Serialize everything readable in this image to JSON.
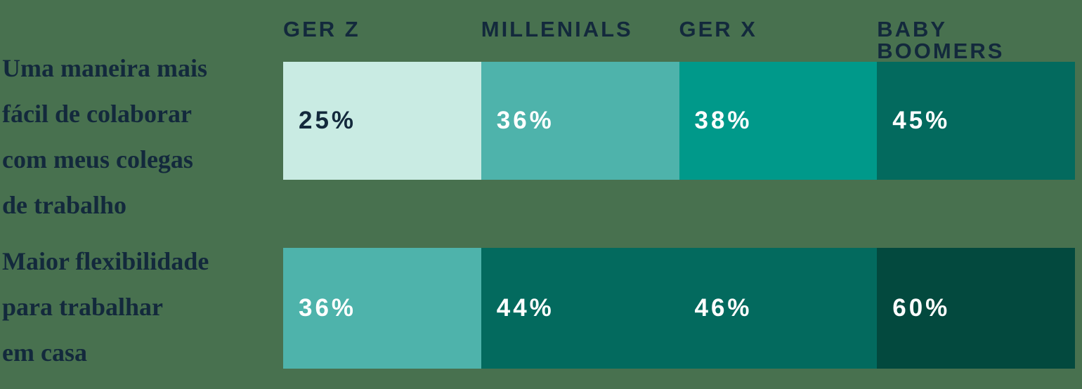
{
  "chart_data": {
    "type": "bar",
    "subtype": "horizontal-grouped-percentage-strips",
    "unit": "%",
    "categories": [
      "GER Z",
      "MILLENIALS",
      "GER X",
      "BABY BOOMERS"
    ],
    "legend": "column headers above bars, no separate legend",
    "grid": false,
    "rows": [
      {
        "label": "Uma maneira mais fácil de colaborar com meus colegas de trabalho",
        "label_lines": [
          "Uma maneira mais",
          "fácil de colaborar",
          "com meus colegas",
          "de trabalho"
        ],
        "values": [
          25,
          36,
          38,
          45
        ],
        "segments": [
          {
            "category": "GER Z",
            "value": 25,
            "label": "25%",
            "bg": "#C9EBE3",
            "fg": "#13293C"
          },
          {
            "category": "MILLENIALS",
            "value": 36,
            "label": "36%",
            "bg": "#4EB3AB",
            "fg": "#FFFFFF"
          },
          {
            "category": "GER X",
            "value": 38,
            "label": "38%",
            "bg": "#00998A",
            "fg": "#FFFFFF"
          },
          {
            "category": "BABY BOOMERS",
            "value": 45,
            "label": "45%",
            "bg": "#036A5E",
            "fg": "#FFFFFF"
          }
        ]
      },
      {
        "label": "Maior flexibilidade para trabalhar em casa",
        "label_lines": [
          "Maior flexibilidade",
          "para trabalhar",
          "em casa"
        ],
        "values": [
          36,
          44,
          46,
          60
        ],
        "segments": [
          {
            "category": "GER Z",
            "value": 36,
            "label": "36%",
            "bg": "#4EB3AB",
            "fg": "#FFFFFF"
          },
          {
            "category": "MILLENIALS",
            "value": 44,
            "label": "44%",
            "bg": "#036A5E",
            "fg": "#FFFFFF"
          },
          {
            "category": "GER X",
            "value": 46,
            "label": "46%",
            "bg": "#036A5E",
            "fg": "#FFFFFF"
          },
          {
            "category": "BABY BOOMERS",
            "value": 60,
            "label": "60%",
            "bg": "#03493E",
            "fg": "#FFFFFF"
          }
        ]
      }
    ],
    "colors": {
      "background": "#48714F",
      "header_text": "#13293C",
      "row_label_text": "#13293C",
      "palette": [
        "#C9EBE3",
        "#4EB3AB",
        "#00998A",
        "#036A5E",
        "#03493E"
      ]
    }
  }
}
